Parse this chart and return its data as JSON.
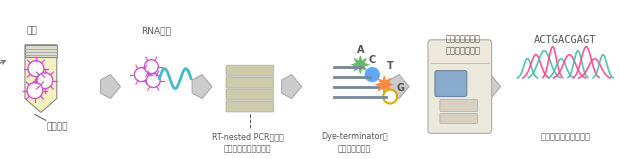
{
  "bg_color": "#ffffff",
  "fig_width": 6.2,
  "fig_height": 1.59,
  "dpi": 100,
  "text_color": "#555555",
  "label_血漿": "血漿",
  "label_ウイルス": "ウイルス",
  "label_RNA": "RNA抽出",
  "label_PCR": "RT-nested PCRによる\nウイルス遺伝子の増幅",
  "label_dye": "Dye-terminatorを\n用いた標識反応",
  "label_seq_top": "シーケンサーを\n用いた電気泳動",
  "label_actg": "ACTGACGAGT",
  "label_塩基": "塩基配列の編集と解析",
  "virus_color": "#cc55cc",
  "rna_wave_color": "#44bbcc",
  "pcr_band_color": "#ccccaa",
  "pcr_band_edge": "#aaaaaa",
  "dye_a_color": "#55aa55",
  "dye_c_color": "#4499ff",
  "dye_t_color": "#ff7722",
  "dye_g_color": "#ddaa00",
  "seq_machine_body": "#ede8dc",
  "seq_machine_edge": "#aaaaaa",
  "seq_screen": "#88aacc",
  "arrow_fc": "#cccccc",
  "arrow_ec": "#aaaaaa",
  "chrom_colors": [
    "#55ccaa",
    "#ff4488",
    "#55ccaa",
    "#ff4488",
    "#55ccaa",
    "#ff4488",
    "#55ccaa",
    "#ff4488",
    "#ff4488",
    "#55ccaa"
  ]
}
